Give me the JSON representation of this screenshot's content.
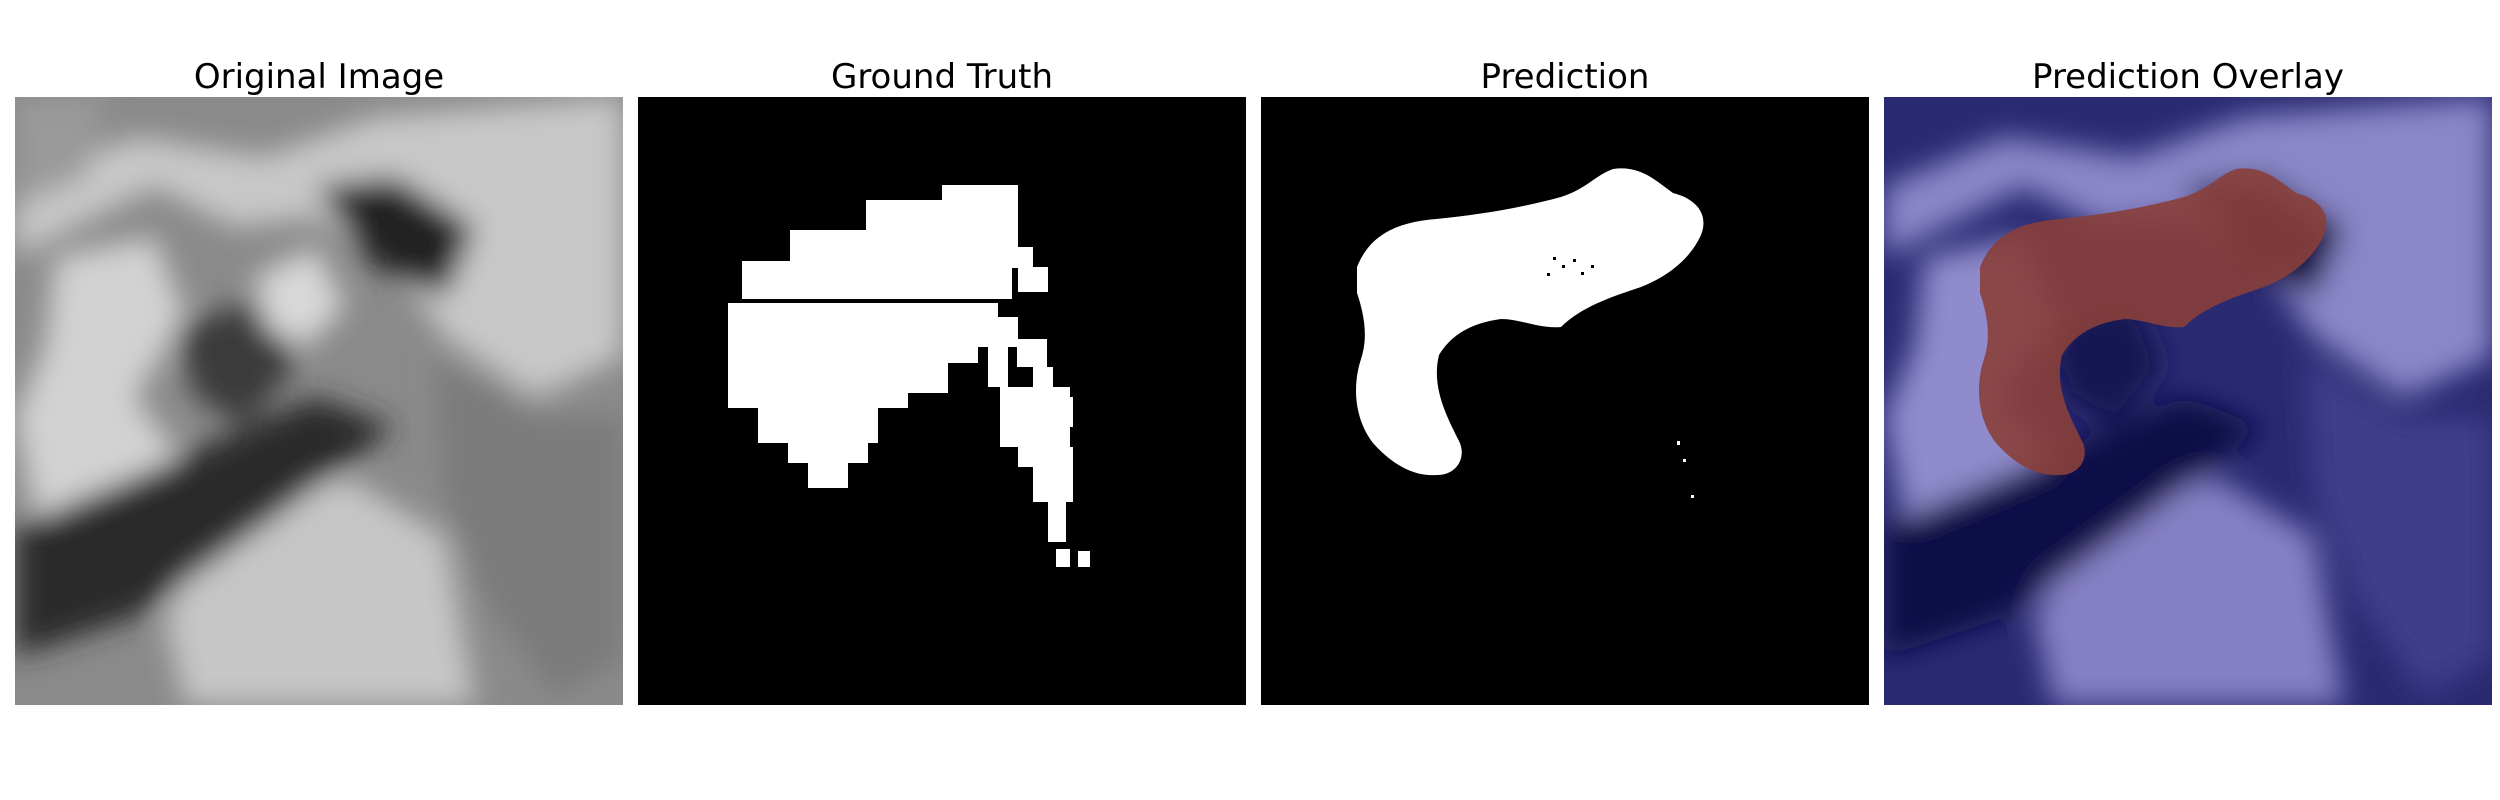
{
  "panels": [
    {
      "title": "Original Image"
    },
    {
      "title": "Ground Truth"
    },
    {
      "title": "Prediction"
    },
    {
      "title": "Prediction Overlay"
    }
  ],
  "colors": {
    "background": "#ffffff",
    "mask_foreground": "#ffffff",
    "mask_background": "#000000",
    "overlay_low": "#0b0b4a",
    "overlay_high": "#8b86c9",
    "overlay_mask": "#8a3f3a"
  }
}
